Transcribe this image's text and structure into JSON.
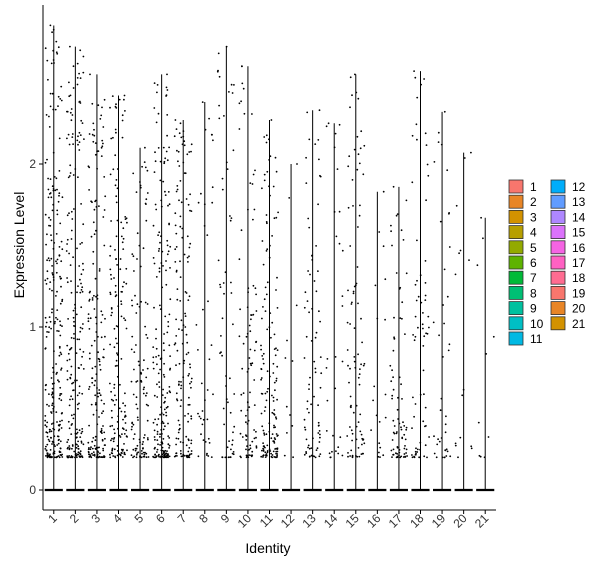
{
  "chart_data": {
    "type": "violin-jitter",
    "xlabel": "Identity",
    "ylabel": "Expression Level",
    "ylim": [
      -0.2,
      2.9
    ],
    "yticks": [
      0,
      1,
      2
    ],
    "grid": false,
    "legend_position": "right",
    "categories": [
      "1",
      "2",
      "3",
      "4",
      "5",
      "6",
      "7",
      "8",
      "9",
      "10",
      "11",
      "12",
      "13",
      "14",
      "15",
      "16",
      "17",
      "18",
      "19",
      "20",
      "21"
    ],
    "max_values": [
      2.85,
      2.72,
      2.55,
      2.42,
      2.1,
      2.55,
      2.27,
      2.38,
      2.72,
      2.6,
      2.27,
      2.0,
      2.33,
      2.25,
      2.55,
      1.83,
      1.86,
      2.57,
      2.32,
      2.07,
      1.67
    ],
    "point_counts": [
      260,
      210,
      180,
      160,
      110,
      200,
      150,
      40,
      60,
      90,
      150,
      12,
      80,
      30,
      90,
      20,
      80,
      70,
      40,
      15,
      10
    ],
    "point_color": "#000000",
    "colors": [
      "#F8766D",
      "#E88526",
      "#D39200",
      "#B79F00",
      "#93AA00",
      "#5EB300",
      "#00BA38",
      "#00BF74",
      "#00C19F",
      "#00BFC4",
      "#00B9E3",
      "#00ADFA",
      "#619CFF",
      "#AE87FF",
      "#DB72FB",
      "#F564E3",
      "#FF61C3",
      "#FF6C91",
      "#F8766D",
      "#E88526",
      "#D39200"
    ]
  },
  "legend": {
    "items": [
      "1",
      "2",
      "3",
      "4",
      "5",
      "6",
      "7",
      "8",
      "9",
      "10",
      "11",
      "12",
      "13",
      "14",
      "15",
      "16",
      "17",
      "18",
      "19",
      "20",
      "21"
    ],
    "colors": [
      "#F8766D",
      "#E88526",
      "#D39200",
      "#B79F00",
      "#93AA00",
      "#5EB300",
      "#00BA38",
      "#00BF74",
      "#00C19F",
      "#00BFC4",
      "#00B9E3",
      "#00ADFA",
      "#619CFF",
      "#AE87FF",
      "#DB72FB",
      "#F564E3",
      "#FF61C3",
      "#FF6C91",
      "#F8766D",
      "#E88526",
      "#D39200"
    ]
  }
}
